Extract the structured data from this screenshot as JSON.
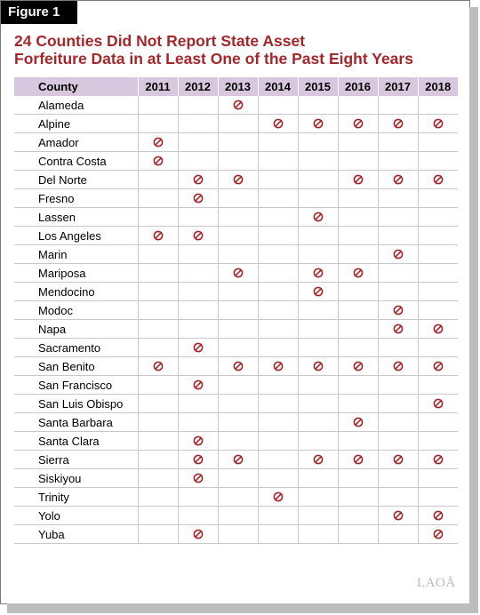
{
  "figure_label": "Figure 1",
  "title_lines": [
    "24 Counties Did Not Report State Asset",
    "Forfeiture Data in at Least One of the Past Eight Years"
  ],
  "table": {
    "county_header": "County",
    "years": [
      "2011",
      "2012",
      "2013",
      "2014",
      "2015",
      "2016",
      "2017",
      "2018"
    ],
    "rows": [
      {
        "county": "Alameda",
        "missing": [
          0,
          0,
          1,
          0,
          0,
          0,
          0,
          0
        ]
      },
      {
        "county": "Alpine",
        "missing": [
          0,
          0,
          0,
          1,
          1,
          1,
          1,
          1
        ]
      },
      {
        "county": "Amador",
        "missing": [
          1,
          0,
          0,
          0,
          0,
          0,
          0,
          0
        ]
      },
      {
        "county": "Contra Costa",
        "missing": [
          1,
          0,
          0,
          0,
          0,
          0,
          0,
          0
        ]
      },
      {
        "county": "Del Norte",
        "missing": [
          0,
          1,
          1,
          0,
          0,
          1,
          1,
          1
        ]
      },
      {
        "county": "Fresno",
        "missing": [
          0,
          1,
          0,
          0,
          0,
          0,
          0,
          0
        ]
      },
      {
        "county": "Lassen",
        "missing": [
          0,
          0,
          0,
          0,
          1,
          0,
          0,
          0
        ]
      },
      {
        "county": "Los Angeles",
        "missing": [
          1,
          1,
          0,
          0,
          0,
          0,
          0,
          0
        ]
      },
      {
        "county": "Marin",
        "missing": [
          0,
          0,
          0,
          0,
          0,
          0,
          1,
          0
        ]
      },
      {
        "county": "Mariposa",
        "missing": [
          0,
          0,
          1,
          0,
          1,
          1,
          0,
          0
        ]
      },
      {
        "county": "Mendocino",
        "missing": [
          0,
          0,
          0,
          0,
          1,
          0,
          0,
          0
        ]
      },
      {
        "county": "Modoc",
        "missing": [
          0,
          0,
          0,
          0,
          0,
          0,
          1,
          0
        ]
      },
      {
        "county": "Napa",
        "missing": [
          0,
          0,
          0,
          0,
          0,
          0,
          1,
          1
        ]
      },
      {
        "county": "Sacramento",
        "missing": [
          0,
          1,
          0,
          0,
          0,
          0,
          0,
          0
        ]
      },
      {
        "county": "San Benito",
        "missing": [
          1,
          0,
          1,
          1,
          1,
          1,
          1,
          1
        ]
      },
      {
        "county": "San Francisco",
        "missing": [
          0,
          1,
          0,
          0,
          0,
          0,
          0,
          0
        ]
      },
      {
        "county": "San Luis Obispo",
        "missing": [
          0,
          0,
          0,
          0,
          0,
          0,
          0,
          1
        ]
      },
      {
        "county": "Santa Barbara",
        "missing": [
          0,
          0,
          0,
          0,
          0,
          1,
          0,
          0
        ]
      },
      {
        "county": "Santa Clara",
        "missing": [
          0,
          1,
          0,
          0,
          0,
          0,
          0,
          0
        ]
      },
      {
        "county": "Sierra",
        "missing": [
          0,
          1,
          1,
          0,
          1,
          1,
          1,
          1
        ]
      },
      {
        "county": "Siskiyou",
        "missing": [
          0,
          1,
          0,
          0,
          0,
          0,
          0,
          0
        ]
      },
      {
        "county": "Trinity",
        "missing": [
          0,
          0,
          0,
          1,
          0,
          0,
          0,
          0
        ]
      },
      {
        "county": "Yolo",
        "missing": [
          0,
          0,
          0,
          0,
          0,
          0,
          1,
          1
        ]
      },
      {
        "county": "Yuba",
        "missing": [
          0,
          1,
          0,
          0,
          0,
          0,
          0,
          1
        ]
      }
    ]
  },
  "marker_icon": "prohibited-icon",
  "colors": {
    "title": "#a3282c",
    "header_band": "#d8c8df",
    "marker": "#a3282c",
    "gridline": "#c9c9c9"
  },
  "logo_text": "LAOÅ"
}
